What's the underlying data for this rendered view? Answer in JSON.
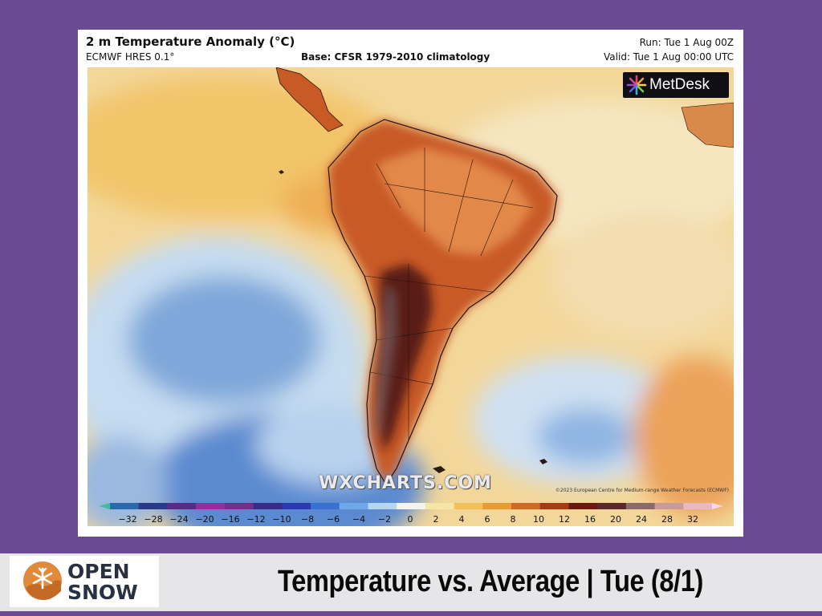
{
  "chart_header": {
    "title": "2 m Temperature Anomaly (°C)",
    "model": "ECMWF HRES 0.1°",
    "base": "Base: CFSR 1979-2010 climatology",
    "run": "Run: Tue 1 Aug 00Z",
    "valid": "Valid: Tue 1 Aug 00:00 UTC"
  },
  "map": {
    "watermark": "WXCHARTS.COM",
    "copyright": "©2023 European Centre for Medium-range Weather Forecasts (ECMWF)",
    "metdesk_label": "MetDesk",
    "metdesk_icon": "metdesk-sunburst-icon"
  },
  "colorbar": {
    "ticks": [
      "−32",
      "−28",
      "−24",
      "−20",
      "−16",
      "−12",
      "−10",
      "−8",
      "−6",
      "−4",
      "−2",
      "0",
      "2",
      "4",
      "6",
      "8",
      "10",
      "12",
      "16",
      "20",
      "24",
      "28",
      "32"
    ],
    "colors": [
      "#3fbf9a",
      "#2a6aa8",
      "#2b3a86",
      "#5a2a86",
      "#9a2aa0",
      "#7a2a8a",
      "#3a2a8a",
      "#2a3ab0",
      "#3a70d0",
      "#6fa8e8",
      "#b6d6f2",
      "#f4f4ee",
      "#f6e6a6",
      "#f2c058",
      "#e89a34",
      "#d06a22",
      "#a83a18",
      "#6a1a10",
      "#5a2a2a",
      "#8a6a6a",
      "#c89a9a",
      "#e8b8c8",
      "#f8d8e8"
    ]
  },
  "footer": {
    "logo_open": "OPEN",
    "logo_snow": "SNOW",
    "logo_icon": "opensnow-snowflake-icon",
    "caption": "Temperature vs. Average | Tue (8/1)"
  }
}
